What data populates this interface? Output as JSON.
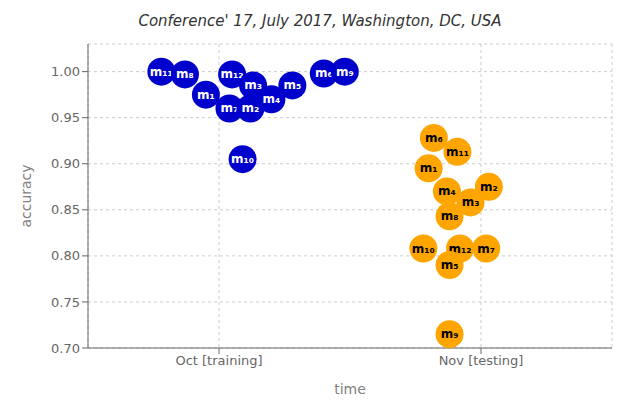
{
  "chart_data": {
    "type": "scatter",
    "title": "Conference' 17, July 2017, Washington, DC, USA",
    "x_label": "time",
    "y_label": "accuracy",
    "xlim": [
      -0.5,
      1.5
    ],
    "xticks": [
      {
        "value": 0,
        "label": "Oct [training]"
      },
      {
        "value": 1,
        "label": "Nov [testing]"
      }
    ],
    "ylim": [
      0.7,
      1.03
    ],
    "yticks": [
      {
        "value": 0.7,
        "label": "0.70"
      },
      0.75,
      {
        "value": 0.8,
        "label": "0.80"
      },
      0.85,
      {
        "value": 0.9,
        "label": "0.90"
      },
      0.95,
      {
        "value": 1,
        "label": "1.00"
      }
    ],
    "grid": true,
    "series": [
      {
        "color": "#0000CC",
        "x": [
          -0.22,
          -0.13,
          -0.05,
          0.05,
          0.13,
          0.04,
          0.12,
          0.2,
          0.28,
          0.4,
          0.48,
          0.09
        ],
        "y": [
          1.0,
          0.997,
          0.975,
          0.997,
          0.985,
          0.96,
          0.96,
          0.97,
          0.985,
          0.998,
          1.0,
          0.905
        ],
        "labels": [
          "m₁₁",
          "m₈",
          "m₁",
          "m₁₂",
          "m₃",
          "m₇",
          "m₂",
          "m₄",
          "m₅",
          "m₆",
          "m₉",
          "m₁₀"
        ]
      },
      {
        "color": "#FFA500",
        "x": [
          0.82,
          0.91,
          0.8,
          1.03,
          0.87,
          0.96,
          0.88,
          0.78,
          0.92,
          1.02,
          0.88,
          0.88
        ],
        "y": [
          0.928,
          0.913,
          0.895,
          0.875,
          0.87,
          0.858,
          0.843,
          0.808,
          0.808,
          0.808,
          0.79,
          0.715
        ],
        "labels": [
          "m₆",
          "m₁₁",
          "m₁",
          "m₂",
          "m₄",
          "m₃",
          "m₈",
          "m₁₀",
          "m₁₂",
          "m₇",
          "m₅",
          "m₉"
        ]
      }
    ]
  }
}
